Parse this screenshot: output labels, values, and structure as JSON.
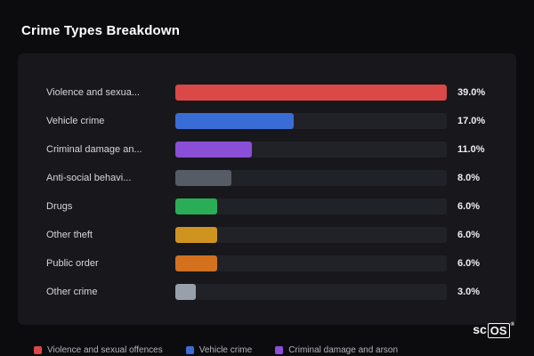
{
  "title": "Crime Types Breakdown",
  "chart_data": {
    "type": "bar",
    "orientation": "horizontal",
    "title": "Crime Types Breakdown",
    "xlabel": "",
    "ylabel": "",
    "xlim": [
      0,
      39
    ],
    "grid": false,
    "legend_position": "bottom",
    "categories": [
      "Violence and sexua...",
      "Vehicle crime",
      "Criminal damage an...",
      "Anti-social behavi...",
      "Drugs",
      "Other theft",
      "Public order",
      "Other crime"
    ],
    "values": [
      39.0,
      17.0,
      11.0,
      8.0,
      6.0,
      6.0,
      6.0,
      3.0
    ],
    "value_labels": [
      "39.0%",
      "17.0%",
      "11.0%",
      "8.0%",
      "6.0%",
      "6.0%",
      "6.0%",
      "3.0%"
    ],
    "bar_colors": [
      "#da4848",
      "#3a6cd6",
      "#8a4fd6",
      "#565b66",
      "#2aad57",
      "#cf9320",
      "#d4711f",
      "#9aa0ab"
    ]
  },
  "colors": {
    "page_background": "#0c0c0f",
    "panel_background": "#17171c",
    "bar_track": "#212228",
    "title_text": "#ffffff",
    "label_text": "#d6d7db",
    "value_text": "#ecedf0",
    "legend_text": "#b2b4ba"
  },
  "legend": [
    {
      "label": "Violence and sexual offences",
      "color": "#da4848"
    },
    {
      "label": "Vehicle crime",
      "color": "#3a6cd6"
    },
    {
      "label": "Criminal damage and arson",
      "color": "#8a4fd6"
    }
  ],
  "watermark": {
    "prefix": "sc",
    "boxed": "OS",
    "reg": "®"
  }
}
